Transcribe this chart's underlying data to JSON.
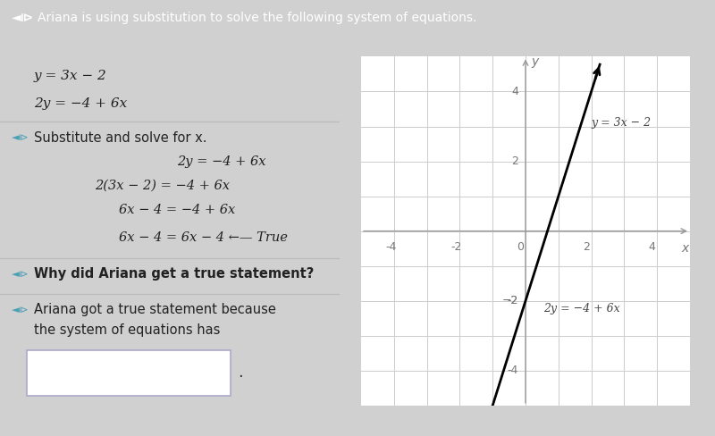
{
  "bg_color": "#d0d0d0",
  "header_bg": "#4a9fb5",
  "header_text": "Ariana is using substitution to solve the following system of equations.",
  "header_text_color": "#ffffff",
  "panel_bg": "#d8d8d8",
  "eq1": "y = 3x − 2",
  "eq2": "2y = −4 + 6x",
  "section1_title": "Substitute and solve for x.",
  "steps": [
    "2y = −4 + 6x",
    "2(3x − 2) = −4 + 6x",
    "6x − 4 = −4 + 6x",
    "6x − 4 = 6x − 4 ←— True"
  ],
  "question_bold": "Why did Ariana get a true statement?",
  "answer_line1": "Ariana got a true statement because",
  "answer_line2": "the system of equations has",
  "dropdown_text": "?",
  "graph_xlim": [
    -5,
    5
  ],
  "graph_ylim": [
    -5,
    5
  ],
  "graph_xticks": [
    -4,
    -2,
    0,
    2,
    4
  ],
  "graph_yticks": [
    -4,
    -2,
    2,
    4
  ],
  "line_color": "#000000",
  "line1_label": "y = 3x − 2",
  "line2_label": "2y = −4 + 6x",
  "axis_color": "#999999",
  "grid_color": "#cccccc",
  "speaker_color": "#4a9fb5",
  "sep_color": "#bbbbbb",
  "tick_label_color": "#777777",
  "text_color": "#222222"
}
